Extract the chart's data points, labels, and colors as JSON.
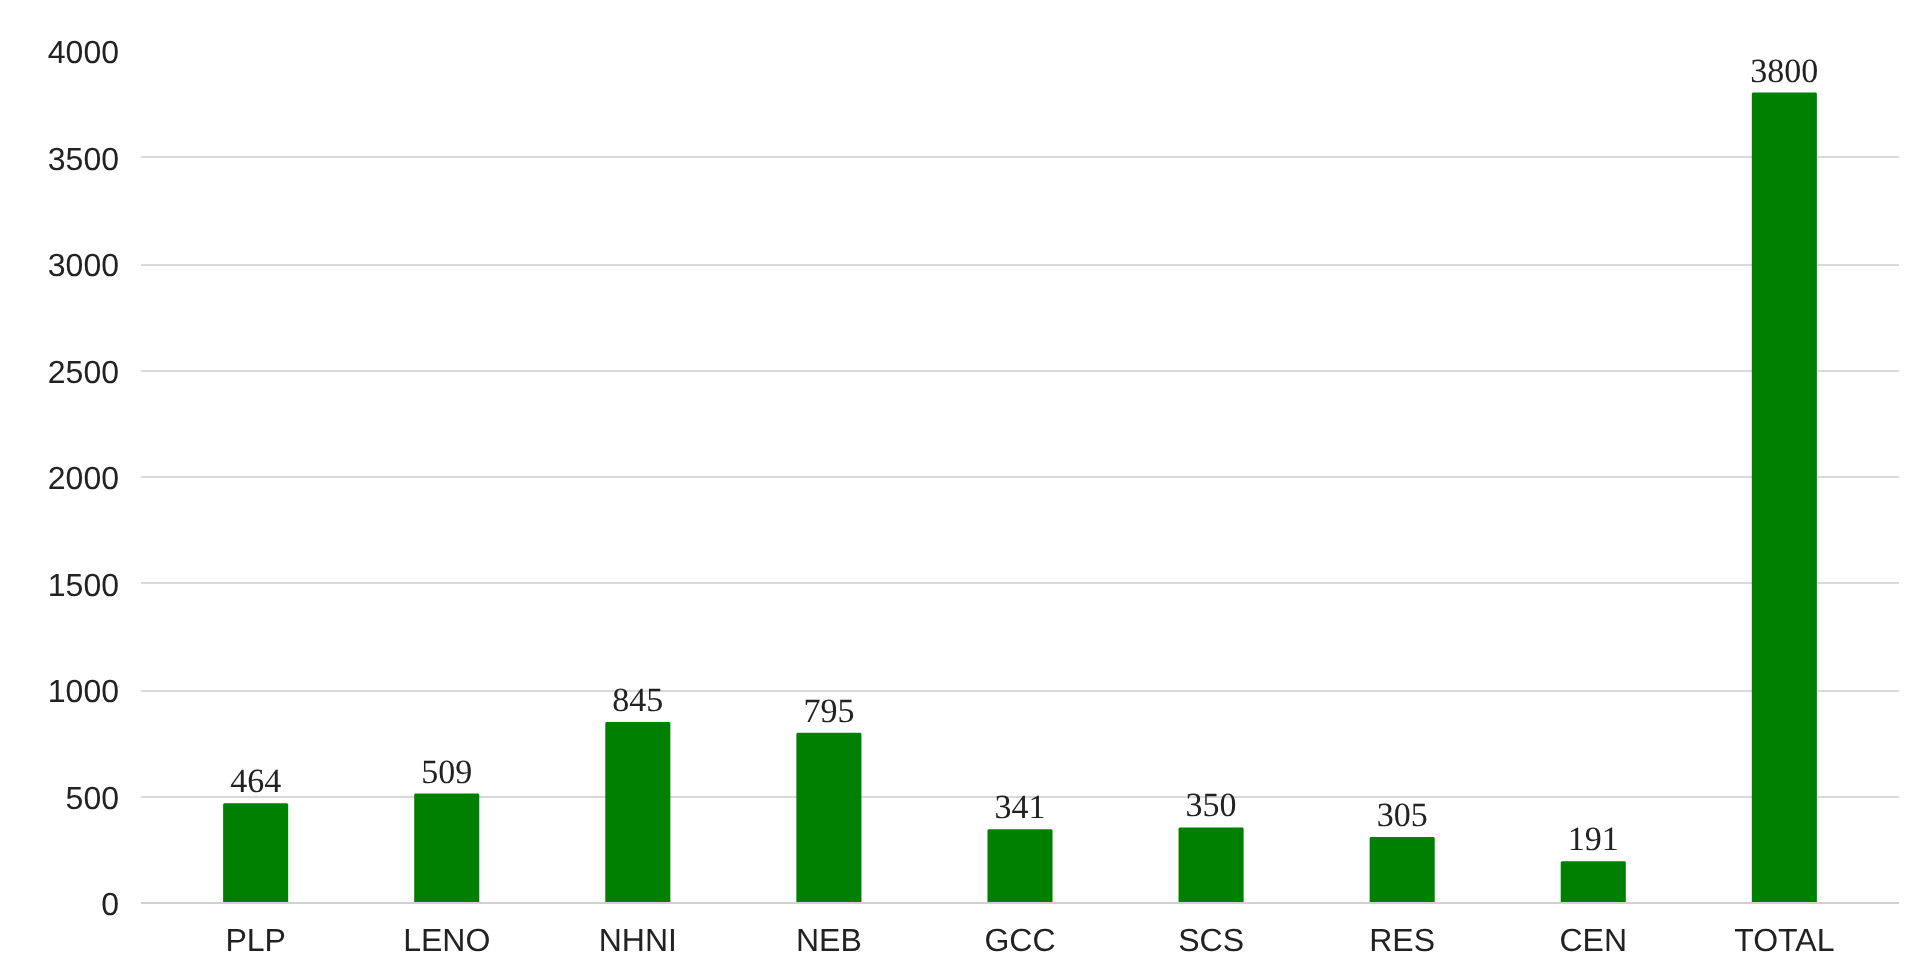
{
  "chart_data": {
    "type": "bar",
    "categories": [
      "PLP",
      "LENO",
      "NHNI",
      "NEB",
      "GCC",
      "SCS",
      "RES",
      "CEN",
      "TOTAL"
    ],
    "values": [
      464,
      509,
      845,
      795,
      341,
      350,
      305,
      191,
      3800
    ],
    "color": "#008000",
    "ylim": [
      0,
      4000
    ],
    "yticks": [
      0,
      500,
      1000,
      1500,
      2000,
      2500,
      3000,
      3500,
      4000
    ],
    "grid": "y",
    "data_labels": true
  }
}
